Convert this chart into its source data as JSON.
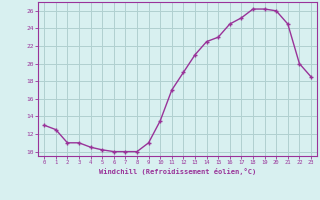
{
  "x": [
    0,
    1,
    2,
    3,
    4,
    5,
    6,
    7,
    8,
    9,
    10,
    11,
    12,
    13,
    14,
    15,
    16,
    17,
    18,
    19,
    20,
    21,
    22,
    23
  ],
  "y": [
    13.0,
    12.5,
    11.0,
    11.0,
    10.5,
    10.2,
    10.0,
    10.0,
    10.0,
    11.0,
    13.5,
    17.0,
    19.0,
    21.0,
    22.5,
    23.0,
    24.5,
    25.2,
    26.2,
    26.2,
    26.0,
    24.5,
    20.0,
    18.5
  ],
  "line_color": "#993399",
  "marker": "+",
  "bg_color": "#d8f0f0",
  "grid_color": "#b0d0d0",
  "xlabel": "Windchill (Refroidissement éolien,°C)",
  "xlim": [
    -0.5,
    23.5
  ],
  "ylim": [
    9.5,
    27.0
  ],
  "xticks": [
    0,
    1,
    2,
    3,
    4,
    5,
    6,
    7,
    8,
    9,
    10,
    11,
    12,
    13,
    14,
    15,
    16,
    17,
    18,
    19,
    20,
    21,
    22,
    23
  ],
  "yticks": [
    10,
    12,
    14,
    16,
    18,
    20,
    22,
    24,
    26
  ],
  "axis_color": "#993399",
  "tick_color": "#993399",
  "label_color": "#993399"
}
